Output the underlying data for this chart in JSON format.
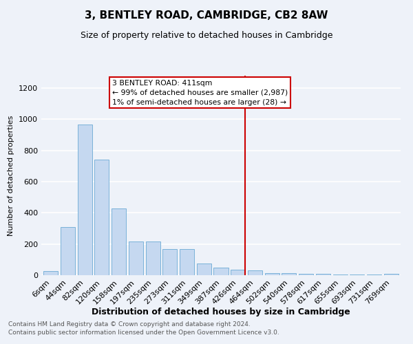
{
  "title": "3, BENTLEY ROAD, CAMBRIDGE, CB2 8AW",
  "subtitle": "Size of property relative to detached houses in Cambridge",
  "xlabel": "Distribution of detached houses by size in Cambridge",
  "ylabel": "Number of detached properties",
  "footer_line1": "Contains HM Land Registry data © Crown copyright and database right 2024.",
  "footer_line2": "Contains public sector information licensed under the Open Government Licence v3.0.",
  "bar_labels": [
    "6sqm",
    "44sqm",
    "82sqm",
    "120sqm",
    "158sqm",
    "197sqm",
    "235sqm",
    "273sqm",
    "311sqm",
    "349sqm",
    "387sqm",
    "426sqm",
    "464sqm",
    "502sqm",
    "540sqm",
    "578sqm",
    "617sqm",
    "655sqm",
    "693sqm",
    "731sqm",
    "769sqm"
  ],
  "bar_values": [
    25,
    310,
    965,
    743,
    430,
    215,
    215,
    168,
    168,
    75,
    50,
    35,
    30,
    15,
    15,
    10,
    10,
    5,
    5,
    5,
    10
  ],
  "bar_color": "#c5d8f0",
  "bar_edgecolor": "#6aaad4",
  "background_color": "#eef2f9",
  "grid_color": "#ffffff",
  "red_line_x": 11.42,
  "annotation_title": "3 BENTLEY ROAD: 411sqm",
  "annotation_line1": "← 99% of detached houses are smaller (2,987)",
  "annotation_line2": "1% of semi-detached houses are larger (28) →",
  "annotation_box_facecolor": "#ffffff",
  "annotation_border_color": "#cc0000",
  "ylim": [
    0,
    1280
  ],
  "yticks": [
    0,
    200,
    400,
    600,
    800,
    1000,
    1200
  ],
  "title_fontsize": 11,
  "subtitle_fontsize": 9,
  "xlabel_fontsize": 9,
  "ylabel_fontsize": 8,
  "tick_fontsize": 8,
  "footer_fontsize": 6.5
}
